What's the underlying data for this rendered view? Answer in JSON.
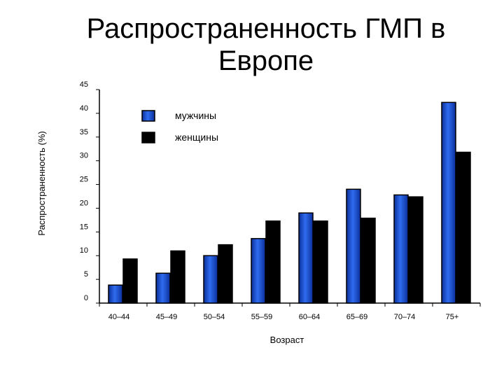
{
  "chart_data": {
    "type": "bar",
    "title_line1": "Распространенность ГМП в",
    "title_line2": "Европе",
    "ylabel": "Распространенность (%)",
    "xlabel": "Возраст",
    "categories": [
      "40–44",
      "45–49",
      "50–54",
      "55–59",
      "60–64",
      "65–69",
      "70–74",
      "75+"
    ],
    "series": [
      {
        "name": "мужчины",
        "values": [
          3.8,
          6.3,
          10.0,
          13.6,
          19.0,
          24.0,
          22.8,
          42.3
        ],
        "color": "#1a52d6"
      },
      {
        "name": "женщины",
        "values": [
          9.3,
          11.0,
          12.3,
          17.3,
          17.3,
          17.9,
          22.4,
          31.8
        ],
        "color": "#000000"
      }
    ],
    "ylim": [
      0,
      45
    ],
    "yticks": [
      0,
      5,
      10,
      15,
      20,
      25,
      30,
      35,
      40,
      45
    ],
    "grid": false,
    "legend_position": "top-left"
  }
}
